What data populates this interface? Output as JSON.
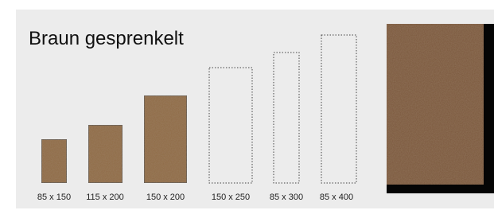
{
  "title": "Braun gesprenkelt",
  "sizes": [
    {
      "label": "85 x 150"
    },
    {
      "label": "115 x 200"
    },
    {
      "label": "150 x 200"
    },
    {
      "label": "150 x 250"
    },
    {
      "label": "85 x 300"
    },
    {
      "label": "85 x 400"
    }
  ]
}
